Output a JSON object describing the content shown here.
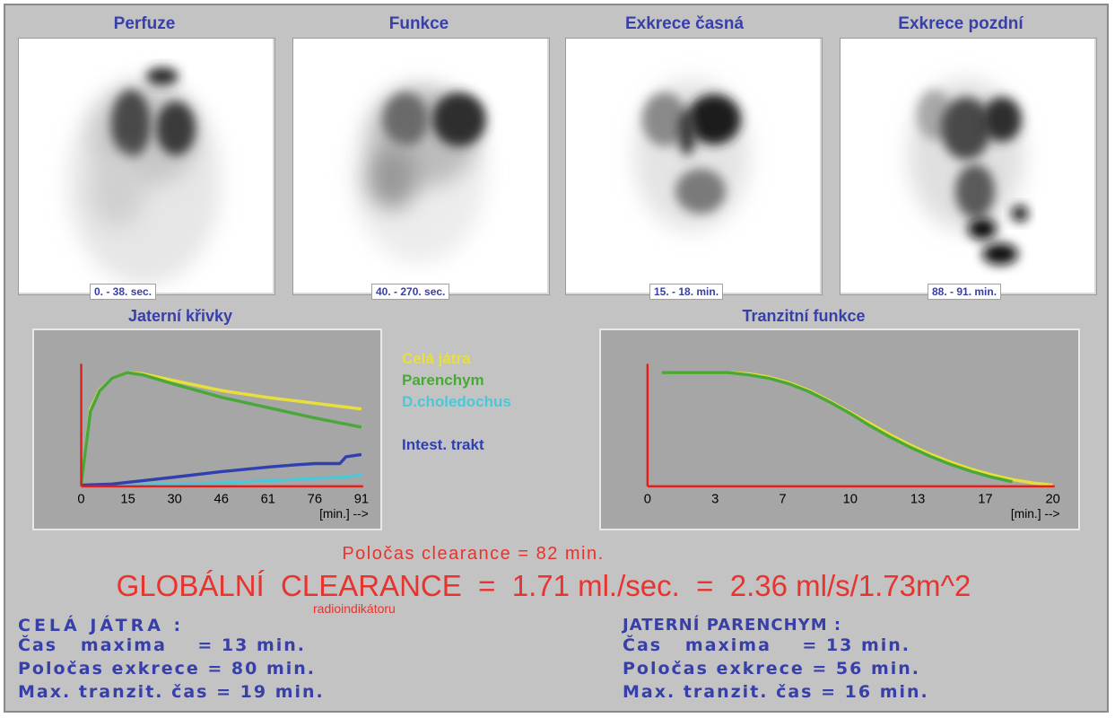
{
  "panels": [
    {
      "title": "Perfuze",
      "time": "0. - 38. sec."
    },
    {
      "title": "Funkce",
      "time": "40. - 270. sec."
    },
    {
      "title": "Exkrece časná",
      "time": "15. - 18. min."
    },
    {
      "title": "Exkrece pozdní",
      "time": "88. - 91. min."
    }
  ],
  "chart_data": [
    {
      "type": "line",
      "title": "Jaterní křivky",
      "xlabel": "[min.] -->",
      "xticks": [
        "0",
        "15",
        "30",
        "46",
        "61",
        "76",
        "91"
      ],
      "xlim": [
        0,
        91
      ],
      "ylim": [
        0,
        100
      ],
      "grid": false,
      "series": [
        {
          "name": "Celá játra",
          "color": "#e8e03a",
          "x": [
            0,
            3,
            6,
            10,
            15,
            20,
            30,
            46,
            61,
            76,
            91
          ],
          "y": [
            2,
            68,
            85,
            95,
            100,
            99,
            93,
            84,
            78,
            73,
            68
          ]
        },
        {
          "name": "Parenchym",
          "color": "#4aa83a",
          "x": [
            0,
            3,
            6,
            10,
            15,
            20,
            30,
            46,
            61,
            76,
            91
          ],
          "y": [
            2,
            66,
            84,
            95,
            100,
            98,
            90,
            78,
            69,
            60,
            52
          ]
        },
        {
          "name": "D.choledochus",
          "color": "#4ac8d8",
          "x": [
            0,
            15,
            30,
            46,
            61,
            76,
            86,
            91
          ],
          "y": [
            0,
            1,
            2,
            3,
            5,
            7,
            8,
            10
          ]
        },
        {
          "name": "Intest. trakt",
          "color": "#3040b0",
          "x": [
            0,
            10,
            20,
            30,
            46,
            61,
            70,
            76,
            84,
            86,
            91
          ],
          "y": [
            1,
            2,
            5,
            8,
            13,
            17,
            19,
            20,
            20,
            26,
            28
          ]
        }
      ]
    },
    {
      "type": "line",
      "title": "Tranzitní funkce",
      "xlabel": "[min.] -->",
      "xticks": [
        "0",
        "3",
        "7",
        "10",
        "13",
        "17",
        "20"
      ],
      "xlim": [
        0,
        20
      ],
      "ylim": [
        0,
        100
      ],
      "grid": false,
      "series": [
        {
          "color": "#e8e03a",
          "x": [
            0.7,
            2,
            4,
            5,
            6,
            7,
            8,
            9,
            10,
            11,
            12,
            13,
            14,
            15,
            16,
            17,
            18,
            19,
            20
          ],
          "y": [
            100,
            100,
            100,
            99,
            96,
            91,
            84,
            75,
            65,
            55,
            45,
            36,
            28,
            21,
            15,
            10,
            6,
            3,
            1
          ]
        },
        {
          "color": "#4aa83a",
          "x": [
            0.7,
            2,
            4,
            5,
            6,
            7,
            8,
            9,
            10,
            11,
            12,
            13,
            14,
            15,
            16,
            17,
            18
          ],
          "y": [
            100,
            100,
            100,
            98,
            95,
            90,
            83,
            74,
            64,
            53,
            43,
            34,
            26,
            19,
            13,
            8,
            4
          ]
        }
      ]
    }
  ],
  "legend": {
    "cela_jatra": "Celá játra",
    "parenchym": "Parenchym",
    "choledochus": "D.choledochus",
    "intest": "Intest. trakt"
  },
  "results": {
    "polocas_clearance": "Poločas clearance =  82 min.",
    "globalni_clearance": "GLOBÁLNÍ  CLEARANCE  =  1.71 ml./sec.  =  2.36 ml/s/1.73m^2",
    "radioindikator": "radioindikátoru"
  },
  "left_stats": {
    "heading": "CELÁ JÁTRA :",
    "lines": [
      "Čas   maxima    = 13 min.",
      "Poločas exkrece = 80 min.",
      "Max. tranzit. čas = 19 min."
    ]
  },
  "right_stats": {
    "heading": "JATERNÍ PARENCHYM :",
    "lines": [
      "Čas   maxima    = 13 min.",
      "Poločas exkrece = 56 min.",
      "Max. tranzit. čas = 16 min."
    ]
  }
}
